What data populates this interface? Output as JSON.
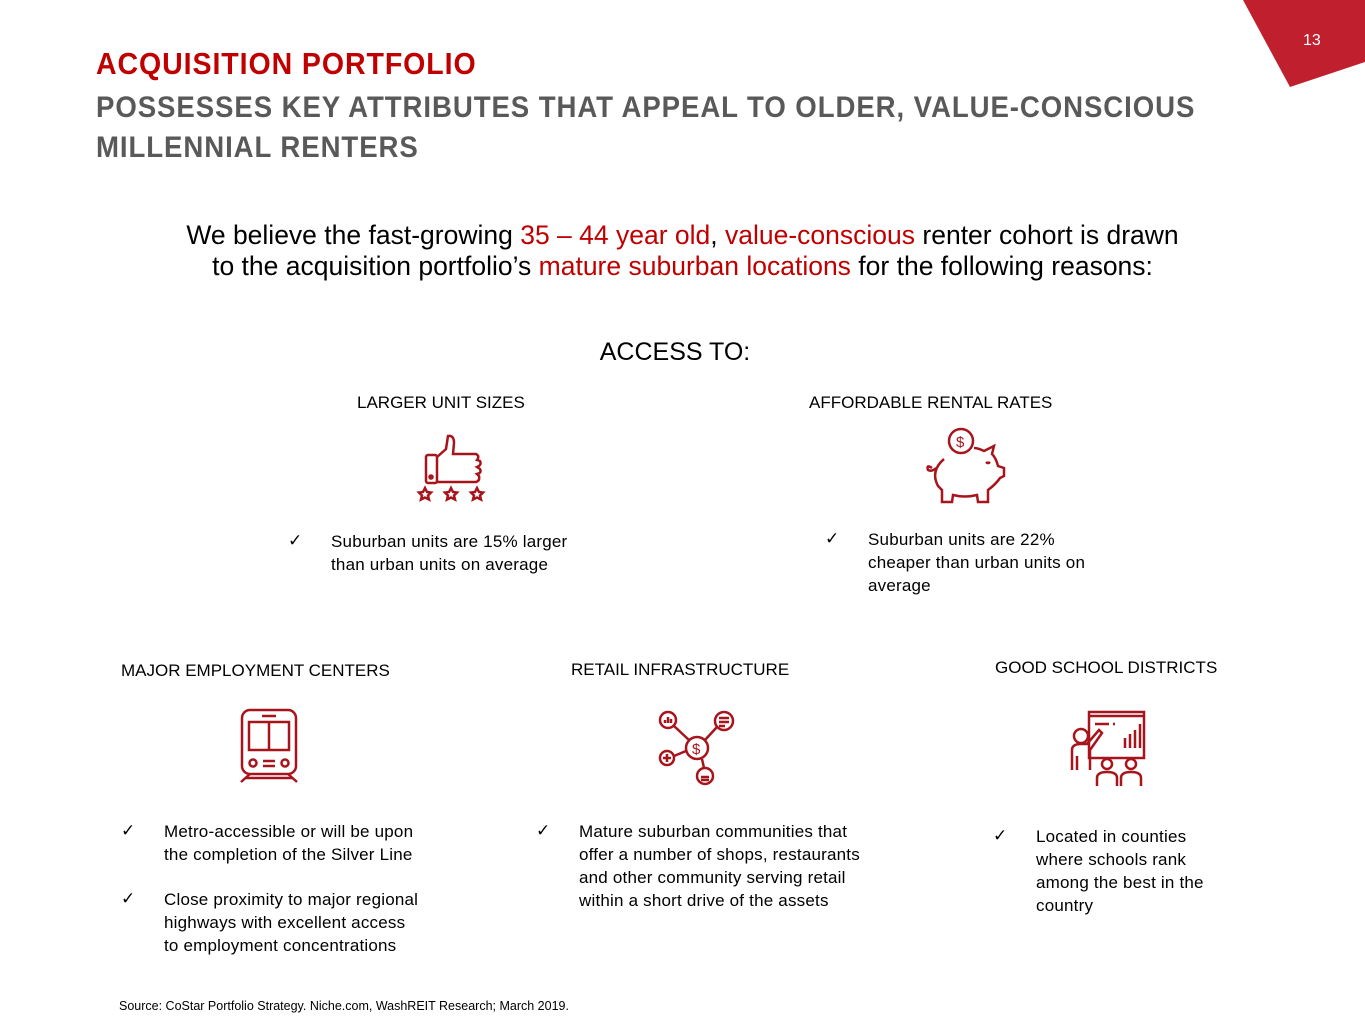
{
  "page_number": "13",
  "title": "ACQUISITION PORTFOLIO",
  "subtitle": "POSSESSES KEY ATTRIBUTES THAT APPEAL TO OLDER, VALUE-CONSCIOUS MILLENNIAL RENTERS",
  "intro": {
    "p1": "We believe the fast-growing ",
    "h1": "35 – 44 year old",
    "p2": ", ",
    "h2": "value-conscious",
    "p3": " renter cohort is drawn",
    "p4": "to the acquisition portfolio’s ",
    "h3": "mature suburban locations",
    "p5": " for the following reasons:"
  },
  "access_label": "ACCESS TO:",
  "accent_color": "#c00000",
  "sections": [
    {
      "heading": "LARGER UNIT SIZES",
      "icon": "thumbs-up-stars-icon",
      "bullets": [
        "Suburban units are 15% larger than urban units on average"
      ]
    },
    {
      "heading": "AFFORDABLE RENTAL RATES",
      "icon": "piggy-bank-icon",
      "bullets": [
        "Suburban units are 22% cheaper than urban units on average"
      ]
    },
    {
      "heading": "MAJOR EMPLOYMENT CENTERS",
      "icon": "train-icon",
      "bullets": [
        "Metro-accessible or will be upon the completion of the Silver Line",
        "Close proximity to major regional highways with excellent access to employment concentrations"
      ]
    },
    {
      "heading": "RETAIL INFRASTRUCTURE",
      "icon": "retail-network-icon",
      "bullets": [
        "Mature suburban communities that offer a number of shops, restaurants and other community serving retail within a short drive of the assets"
      ]
    },
    {
      "heading": "GOOD SCHOOL DISTRICTS",
      "icon": "classroom-icon",
      "bullets": [
        "Located in counties where schools rank among the best in the country"
      ]
    }
  ],
  "check_mark": "✓",
  "source": "Source: CoStar Portfolio Strategy. Niche.com, WashREIT Research; March 2019."
}
